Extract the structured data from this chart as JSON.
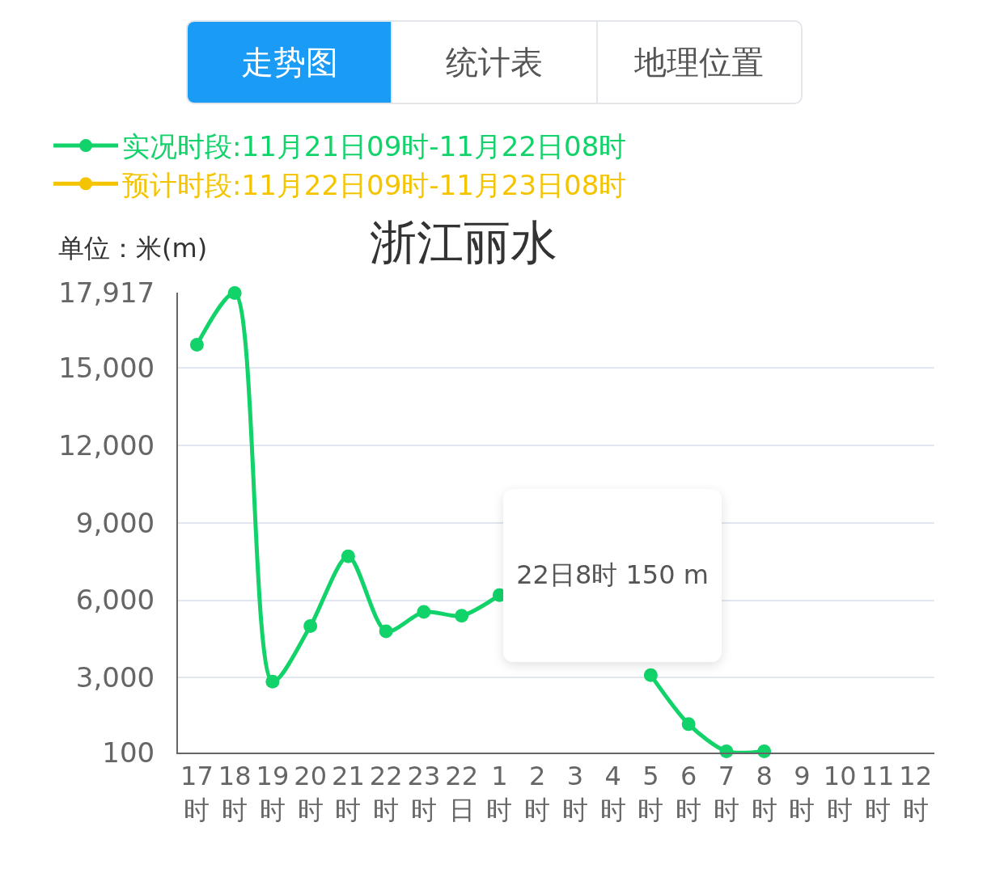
{
  "chart_data": {
    "type": "line",
    "title": "浙江丽水",
    "ylabel": "单位：米(m)",
    "categories": [
      "17时",
      "18时",
      "19时",
      "20时",
      "21时",
      "22时",
      "23时",
      "22日",
      "1时",
      "2时",
      "3时",
      "4时",
      "5时",
      "6时",
      "7时",
      "8时",
      "9时",
      "10时",
      "11时",
      "12时"
    ],
    "series": [
      {
        "name": "实况时段:11月21日09时-11月22日08时",
        "color": "#12d26a",
        "values": [
          15900,
          17900,
          2850,
          5000,
          7700,
          4800,
          5550,
          5400,
          6200,
          null,
          null,
          null,
          3100,
          1200,
          150,
          150,
          null,
          null,
          null,
          null
        ]
      },
      {
        "name": "预计时段:11月22日09时-11月23日08时",
        "color": "#f5c400",
        "values": [
          null,
          null,
          null,
          null,
          null,
          null,
          null,
          null,
          null,
          null,
          null,
          null,
          null,
          null,
          null,
          null,
          null,
          null,
          null,
          null
        ]
      }
    ],
    "ylim": [
      100,
      17917
    ],
    "yticks": [
      100,
      {
        "value": 3000,
        "label": "3,000"
      },
      {
        "value": 6000,
        "label": "6,000"
      },
      {
        "value": 9000,
        "label": "9,000"
      },
      {
        "value": 12000,
        "label": "12,000"
      },
      {
        "value": 15000,
        "label": "15,000"
      },
      {
        "value": 17917,
        "label": "17,917"
      }
    ],
    "grid": "y",
    "legend": "top left",
    "marker": "circle",
    "line_style": "solid",
    "annotations": [
      "走势图",
      "统计表",
      "地理位置",
      "22日8时 150 m"
    ]
  }
}
